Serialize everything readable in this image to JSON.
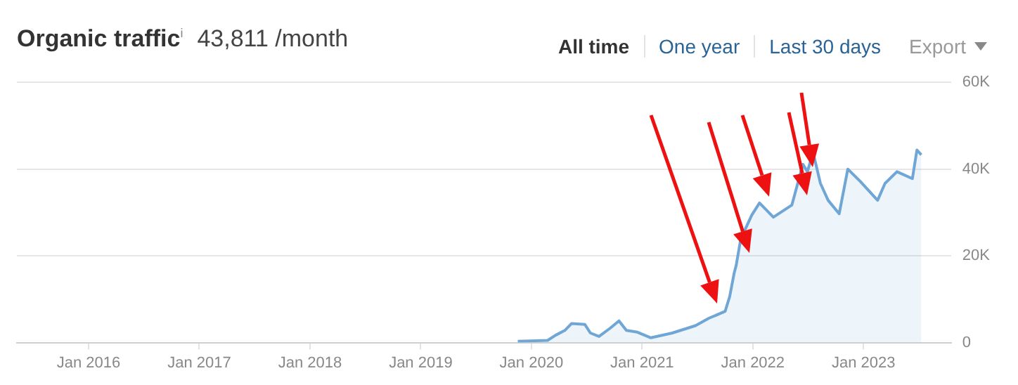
{
  "chart_data": {
    "type": "area",
    "title": "Organic traffic$^{i}$",
    "subtitle": "43,811 /month",
    "annotations": [
      "All time",
      "One year",
      "Last 30 days",
      "Export"
    ],
    "x": [
      "2019-11-17",
      "2020-02-24",
      "2020-03-20",
      "2020-04-20",
      "2020-05-12",
      "2020-06-25",
      "2020-07-13",
      "2020-08-11",
      "2020-09-17",
      "2020-10-16",
      "2020-11-10",
      "2020-12-16",
      "2021-01-30",
      "2021-04-09",
      "2021-06-25",
      "2021-08-08",
      "2021-10-01",
      "2021-10-16",
      "2021-10-31",
      "2021-11-07",
      "2021-11-22",
      "2021-12-28",
      "2022-01-23",
      "2022-03-08",
      "2022-05-08",
      "2022-06-14",
      "2022-06-29",
      "2022-07-17",
      "2022-08-11",
      "2022-09-06",
      "2022-10-12",
      "2022-11-10",
      "2022-12-20",
      "2023-02-17",
      "2023-03-11",
      "2023-04-20",
      "2023-06-10",
      "2023-06-25",
      "2023-07-09"
    ],
    "series": [
      {
        "color": "#6fa6d6",
        "values": [
          300,
          500,
          1700,
          2800,
          4400,
          4200,
          2200,
          1400,
          3300,
          5000,
          2800,
          2400,
          1100,
          2200,
          3900,
          5600,
          7200,
          10600,
          16100,
          17800,
          23900,
          29400,
          32200,
          28900,
          31700,
          41100,
          39400,
          43900,
          36700,
          32800,
          29700,
          40000,
          37200,
          32800,
          36700,
          39400,
          37800,
          44400,
          43300
        ]
      }
    ],
    "xlim": [
      "2015-05-08",
      "2023-10-16"
    ],
    "xticks": [
      {
        "value": "2016-01-01",
        "label": "Jan 2016"
      },
      {
        "value": "2017-01-01",
        "label": "Jan 2017"
      },
      {
        "value": "2018-01-01",
        "label": "Jan 2018"
      },
      {
        "value": "2019-01-01",
        "label": "Jan 2019"
      },
      {
        "value": "2020-01-01",
        "label": "Jan 2020"
      },
      {
        "value": "2021-01-01",
        "label": "Jan 2021"
      },
      {
        "value": "2022-01-01",
        "label": "Jan 2022"
      },
      {
        "value": "2023-01-01",
        "label": "Jan 2023"
      }
    ],
    "ylim": [
      0,
      60000
    ],
    "yticks": [
      0,
      {
        "value": 20000,
        "label": "20K"
      },
      {
        "value": 40000,
        "label": "40K"
      },
      {
        "value": 60000,
        "label": "60K"
      }
    ],
    "grid": "y",
    "legend": false,
    "marker": "none",
    "line_style": "solid"
  }
}
